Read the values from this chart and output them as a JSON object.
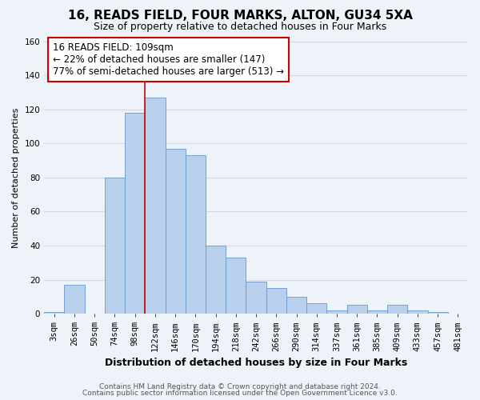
{
  "title": "16, READS FIELD, FOUR MARKS, ALTON, GU34 5XA",
  "subtitle": "Size of property relative to detached houses in Four Marks",
  "xlabel": "Distribution of detached houses by size in Four Marks",
  "ylabel": "Number of detached properties",
  "bar_labels": [
    "3sqm",
    "26sqm",
    "50sqm",
    "74sqm",
    "98sqm",
    "122sqm",
    "146sqm",
    "170sqm",
    "194sqm",
    "218sqm",
    "242sqm",
    "266sqm",
    "290sqm",
    "314sqm",
    "337sqm",
    "361sqm",
    "385sqm",
    "409sqm",
    "433sqm",
    "457sqm",
    "481sqm"
  ],
  "bar_values": [
    1,
    17,
    0,
    80,
    118,
    127,
    97,
    93,
    40,
    33,
    19,
    15,
    10,
    6,
    2,
    5,
    2,
    5,
    2,
    1,
    0
  ],
  "bar_color": "#b8d0eb",
  "bar_edge_color": "#6699cc",
  "vline_color": "#cc0000",
  "ylim": [
    0,
    160
  ],
  "yticks": [
    0,
    20,
    40,
    60,
    80,
    100,
    120,
    140,
    160
  ],
  "annotation_text": "16 READS FIELD: 109sqm\n← 22% of detached houses are smaller (147)\n77% of semi-detached houses are larger (513) →",
  "annotation_box_color": "#ffffff",
  "annotation_box_edge": "#cc0000",
  "footer1": "Contains HM Land Registry data © Crown copyright and database right 2024.",
  "footer2": "Contains public sector information licensed under the Open Government Licence v3.0.",
  "bg_color": "#eef2f9",
  "grid_color": "#d0d8e8",
  "title_fontsize": 11,
  "subtitle_fontsize": 9,
  "xlabel_fontsize": 9,
  "ylabel_fontsize": 8,
  "tick_fontsize": 7.5,
  "annotation_fontsize": 8.5,
  "footer_fontsize": 6.5,
  "vline_x_idx": 4.5
}
